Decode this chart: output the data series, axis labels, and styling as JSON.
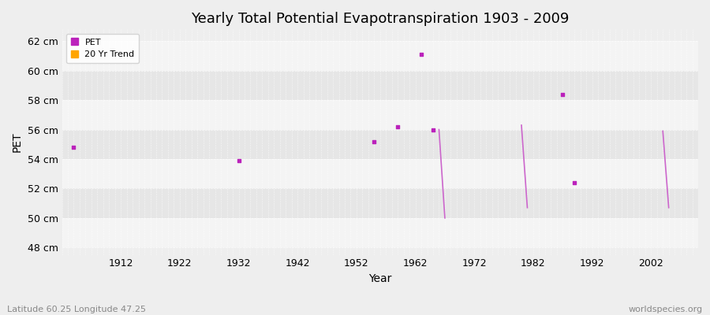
{
  "title": "Yearly Total Potential Evapotranspiration 1903 - 2009",
  "xlabel": "Year",
  "ylabel": "PET",
  "xlim": [
    1902,
    2010
  ],
  "ylim": [
    47.5,
    62.8
  ],
  "yticks": [
    48,
    50,
    52,
    54,
    56,
    58,
    60,
    62
  ],
  "ytick_labels": [
    "48 cm",
    "50 cm",
    "52 cm",
    "54 cm",
    "56 cm",
    "58 cm",
    "60 cm",
    "62 cm"
  ],
  "xticks": [
    1912,
    1922,
    1932,
    1942,
    1952,
    1962,
    1972,
    1982,
    1992,
    2002
  ],
  "pet_color": "#bb22bb",
  "trend_color": "#cc66cc",
  "bg_color": "#eeeeee",
  "band_light": "#f4f4f4",
  "band_dark": "#e6e6e6",
  "grid_color": "#dddddd",
  "pet_points": [
    [
      1904,
      54.8
    ],
    [
      1932,
      53.9
    ],
    [
      1955,
      55.2
    ],
    [
      1959,
      56.2
    ],
    [
      1963,
      61.1
    ],
    [
      1965,
      56.0
    ],
    [
      1987,
      58.4
    ],
    [
      1989,
      52.4
    ]
  ],
  "trend_lines": [
    [
      [
        1966,
        56.0
      ],
      [
        1967,
        50.0
      ]
    ],
    [
      [
        1980,
        56.3
      ],
      [
        1981,
        50.7
      ]
    ],
    [
      [
        2004,
        55.9
      ],
      [
        2005,
        50.7
      ]
    ]
  ],
  "legend_labels": [
    "PET",
    "20 Yr Trend"
  ],
  "legend_colors": [
    "#bb22bb",
    "#FFA500"
  ],
  "subtitle": "Latitude 60.25 Longitude 47.25",
  "watermark": "worldspecies.org",
  "title_fontsize": 13,
  "axis_label_fontsize": 10,
  "tick_fontsize": 9,
  "subtitle_fontsize": 8,
  "watermark_fontsize": 8
}
